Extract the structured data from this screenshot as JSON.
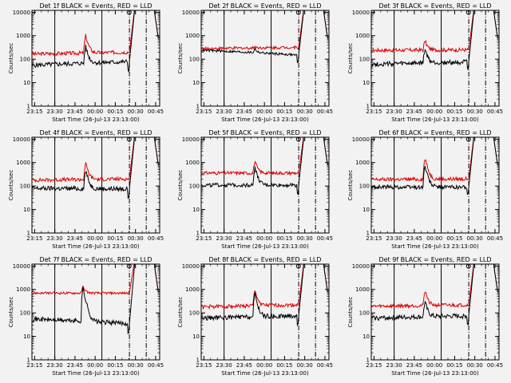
{
  "colors": {
    "background": "#f2f2f2",
    "events": "#000000",
    "lld": "#dd0000",
    "axis": "#000000"
  },
  "chart_data": [
    {
      "type": "line",
      "title": "Det 1f BLACK = Events, RED = LLD",
      "xlabel": "Start Time (26-Jul-13 23:13:00)",
      "ylabel": "Counts/sec",
      "x_ticks": [
        "23:15",
        "23:30",
        "23:45",
        "00:00",
        "00:15",
        "00:30",
        "00:45"
      ],
      "y_ticks": [
        "1",
        "10",
        "100",
        "1000",
        "10000"
      ],
      "y_scale": "log",
      "ylim": [
        1,
        12000
      ],
      "xlim_minutes": [
        0,
        95
      ],
      "vlines_solid_minutes": [
        17,
        52
      ],
      "vlines_dashdot_minutes": [
        72.5,
        85
      ],
      "events": {
        "base": 55,
        "peak": 330,
        "peak_time": 40,
        "end": 78,
        "noise": 0.1
      },
      "lld": {
        "base": 165,
        "peak": 1000,
        "peak_time": 40,
        "end": 200,
        "noise": 0.08
      }
    },
    {
      "type": "line",
      "title": "Det 2f BLACK = Events, RED = LLD",
      "xlabel": "Start Time (26-Jul-13 23:13:00)",
      "ylabel": "Counts/sec",
      "x_ticks": [
        "23:15",
        "23:30",
        "23:45",
        "00:00",
        "00:15",
        "00:30",
        "00:45"
      ],
      "y_ticks": [
        "1",
        "10",
        "100",
        "1000",
        "10000"
      ],
      "y_scale": "log",
      "ylim": [
        1,
        12000
      ],
      "xlim_minutes": [
        0,
        95
      ],
      "vlines_solid_minutes": [
        17,
        52
      ],
      "vlines_dashdot_minutes": [
        72.5,
        85
      ],
      "events": {
        "base": 240,
        "peak": 270,
        "peak_time": 40,
        "end": 150,
        "noise": 0.05
      },
      "lld": {
        "base": 280,
        "peak": 340,
        "peak_time": 40,
        "end": 320,
        "noise": 0.06
      }
    },
    {
      "type": "line",
      "title": "Det 3f BLACK = Events, RED = LLD",
      "xlabel": "Start Time (26-Jul-13 23:13:00)",
      "ylabel": "Counts/sec",
      "x_ticks": [
        "23:15",
        "23:30",
        "23:45",
        "00:00",
        "00:15",
        "00:30",
        "00:45"
      ],
      "y_ticks": [
        "1",
        "10",
        "100",
        "1000",
        "10000"
      ],
      "y_scale": "log",
      "ylim": [
        1,
        12000
      ],
      "xlim_minutes": [
        0,
        95
      ],
      "vlines_solid_minutes": [
        17,
        52
      ],
      "vlines_dashdot_minutes": [
        72.5,
        85
      ],
      "events": {
        "base": 60,
        "peak": 260,
        "peak_time": 40,
        "end": 75,
        "noise": 0.1
      },
      "lld": {
        "base": 240,
        "peak": 600,
        "peak_time": 40,
        "end": 250,
        "noise": 0.08
      }
    },
    {
      "type": "line",
      "title": "Det 4f BLACK = Events, RED = LLD",
      "xlabel": "Start Time (26-Jul-13 23:13:00)",
      "ylabel": "Counts/sec",
      "x_ticks": [
        "23:15",
        "23:30",
        "23:45",
        "00:00",
        "00:15",
        "00:30",
        "00:45"
      ],
      "y_ticks": [
        "1",
        "10",
        "100",
        "1000",
        "10000"
      ],
      "y_scale": "log",
      "ylim": [
        1,
        12000
      ],
      "xlim_minutes": [
        0,
        95
      ],
      "vlines_solid_minutes": [
        17,
        52
      ],
      "vlines_dashdot_minutes": [
        72.5,
        85
      ],
      "events": {
        "base": 80,
        "peak": 450,
        "peak_time": 40,
        "end": 75,
        "noise": 0.1
      },
      "lld": {
        "base": 180,
        "peak": 900,
        "peak_time": 40,
        "end": 200,
        "noise": 0.08
      }
    },
    {
      "type": "line",
      "title": "Det 5f BLACK = Events, RED = LLD",
      "xlabel": "Start Time (26-Jul-13 23:13:00)",
      "ylabel": "Counts/sec",
      "x_ticks": [
        "23:15",
        "23:30",
        "23:45",
        "00:00",
        "00:15",
        "00:30",
        "00:45"
      ],
      "y_ticks": [
        "1",
        "10",
        "100",
        "1000",
        "10000"
      ],
      "y_scale": "log",
      "ylim": [
        1,
        12000
      ],
      "xlim_minutes": [
        0,
        95
      ],
      "vlines_solid_minutes": [
        17,
        52
      ],
      "vlines_dashdot_minutes": [
        72.5,
        85
      ],
      "events": {
        "base": 110,
        "peak": 600,
        "peak_time": 40,
        "end": 110,
        "noise": 0.08
      },
      "lld": {
        "base": 360,
        "peak": 1100,
        "peak_time": 40,
        "end": 360,
        "noise": 0.07
      }
    },
    {
      "type": "line",
      "title": "Det 6f BLACK = Events, RED = LLD",
      "xlabel": "Start Time (26-Jul-13 23:13:00)",
      "ylabel": "Counts/sec",
      "x_ticks": [
        "23:15",
        "23:30",
        "23:45",
        "00:00",
        "00:15",
        "00:30",
        "00:45"
      ],
      "y_ticks": [
        "1",
        "10",
        "100",
        "1000",
        "10000"
      ],
      "y_scale": "log",
      "ylim": [
        1,
        12000
      ],
      "xlim_minutes": [
        0,
        95
      ],
      "vlines_solid_minutes": [
        17,
        52
      ],
      "vlines_dashdot_minutes": [
        72.5,
        85
      ],
      "events": {
        "base": 90,
        "peak": 700,
        "peak_time": 40,
        "end": 90,
        "noise": 0.09
      },
      "lld": {
        "base": 190,
        "peak": 1500,
        "peak_time": 40,
        "end": 200,
        "noise": 0.08
      }
    },
    {
      "type": "line",
      "title": "Det 7f BLACK = Events, RED = LLD",
      "xlabel": "Start Time (26-Jul-13 23:13:00)",
      "ylabel": "Counts/sec",
      "x_ticks": [
        "23:15",
        "23:30",
        "23:45",
        "00:00",
        "00:15",
        "00:30",
        "00:45"
      ],
      "y_ticks": [
        "1",
        "10",
        "100",
        "1000",
        "10000"
      ],
      "y_scale": "log",
      "ylim": [
        1,
        12000
      ],
      "xlim_minutes": [
        0,
        95
      ],
      "vlines_solid_minutes": [
        17,
        52
      ],
      "vlines_dashdot_minutes": [
        72.5,
        85
      ],
      "events": {
        "base": 55,
        "peak": 1100,
        "peak_time": 38,
        "end": 35,
        "noise": 0.1
      },
      "lld": {
        "base": 700,
        "peak": 1300,
        "peak_time": 38,
        "end": 700,
        "noise": 0.05
      }
    },
    {
      "type": "line",
      "title": "Det 8f BLACK = Events, RED = LLD",
      "xlabel": "Start Time (26-Jul-13 23:13:00)",
      "ylabel": "Counts/sec",
      "x_ticks": [
        "23:15",
        "23:30",
        "23:45",
        "00:00",
        "00:15",
        "00:30",
        "00:45"
      ],
      "y_ticks": [
        "1",
        "10",
        "100",
        "1000",
        "10000"
      ],
      "y_scale": "log",
      "ylim": [
        1,
        12000
      ],
      "xlim_minutes": [
        0,
        95
      ],
      "vlines_solid_minutes": [
        17,
        52
      ],
      "vlines_dashdot_minutes": [
        72.5,
        85
      ],
      "events": {
        "base": 60,
        "peak": 600,
        "peak_time": 40,
        "end": 75,
        "noise": 0.1
      },
      "lld": {
        "base": 180,
        "peak": 900,
        "peak_time": 40,
        "end": 220,
        "noise": 0.08
      }
    },
    {
      "type": "line",
      "title": "Det 9f BLACK = Events, RED = LLD",
      "xlabel": "Start Time (26-Jul-13 23:13:00)",
      "ylabel": "Counts/sec",
      "x_ticks": [
        "23:15",
        "23:30",
        "23:45",
        "00:00",
        "00:15",
        "00:30",
        "00:45"
      ],
      "y_ticks": [
        "1",
        "10",
        "100",
        "1000",
        "10000"
      ],
      "y_scale": "log",
      "ylim": [
        1,
        12000
      ],
      "xlim_minutes": [
        0,
        95
      ],
      "vlines_solid_minutes": [
        17,
        52
      ],
      "vlines_dashdot_minutes": [
        72.5,
        85
      ],
      "events": {
        "base": 60,
        "peak": 280,
        "peak_time": 40,
        "end": 75,
        "noise": 0.1
      },
      "lld": {
        "base": 190,
        "peak": 900,
        "peak_time": 40,
        "end": 220,
        "noise": 0.08
      }
    }
  ]
}
